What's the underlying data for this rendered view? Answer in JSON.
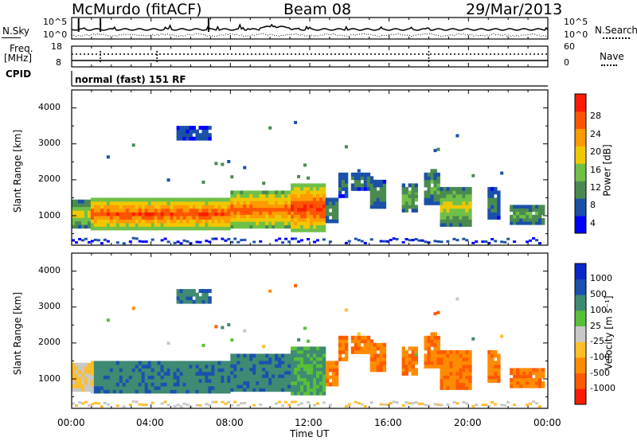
{
  "header": {
    "station": "McMurdo (fitACF)",
    "beam": "Beam 08",
    "date": "29/Mar/2013"
  },
  "noise_panel": {
    "left_label": "N.Sky",
    "right_label": "N.Search",
    "left_ticks": [
      "10^5",
      "10^0"
    ],
    "right_ticks": [
      "10^5",
      "10^0"
    ]
  },
  "freq_panel": {
    "left_label_1": "Freq.",
    "left_label_2": "[MHz]",
    "left_ticks": [
      "18",
      "8"
    ],
    "right_ticks": [
      "60",
      "0"
    ],
    "right_label": "Nave"
  },
  "cpid": {
    "label": "CPID",
    "value": "normal (fast) 151 RF"
  },
  "x_axis": {
    "label": "Time UT",
    "ticks": [
      "00:00",
      "04:00",
      "08:00",
      "12:00",
      "16:00",
      "20:00",
      "00:00"
    ]
  },
  "chart_data": [
    {
      "type": "heatmap",
      "name": "power",
      "xlabel": "Time UT",
      "ylabel": "Slant Range [km]",
      "xlim": [
        0,
        24
      ],
      "ylim": [
        180,
        4500
      ],
      "yticks": [
        "1000",
        "2000",
        "3000",
        "4000"
      ],
      "colorbar": {
        "label": "Power [dB]",
        "ticks": [
          "28",
          "24",
          "20",
          "16",
          "12",
          "8",
          "4"
        ],
        "range": [
          0,
          32
        ],
        "colors": [
          "#0000ff",
          "#1a50a8",
          "#4a8a50",
          "#70c048",
          "#f0c800",
          "#ff9a00",
          "#ff5500",
          "#ff1a00"
        ]
      }
    },
    {
      "type": "heatmap",
      "name": "velocity",
      "xlabel": "Time UT",
      "ylabel": "Slant Range [km]",
      "xlim": [
        0,
        24
      ],
      "ylim": [
        180,
        4500
      ],
      "yticks": [
        "1000",
        "2000",
        "3000",
        "4000"
      ],
      "colorbar": {
        "label": "Velocity [m s⁻¹]",
        "ticks": [
          "1000",
          "500",
          "100",
          "25",
          "-25",
          "-100",
          "-500",
          "-1000"
        ],
        "colors": [
          "#ff1a00",
          "#ff5a00",
          "#ff8c00",
          "#ffbe28",
          "#c8c8c8",
          "#58c038",
          "#3e8a72",
          "#1a50b0",
          "#0a28c8"
        ]
      }
    }
  ]
}
